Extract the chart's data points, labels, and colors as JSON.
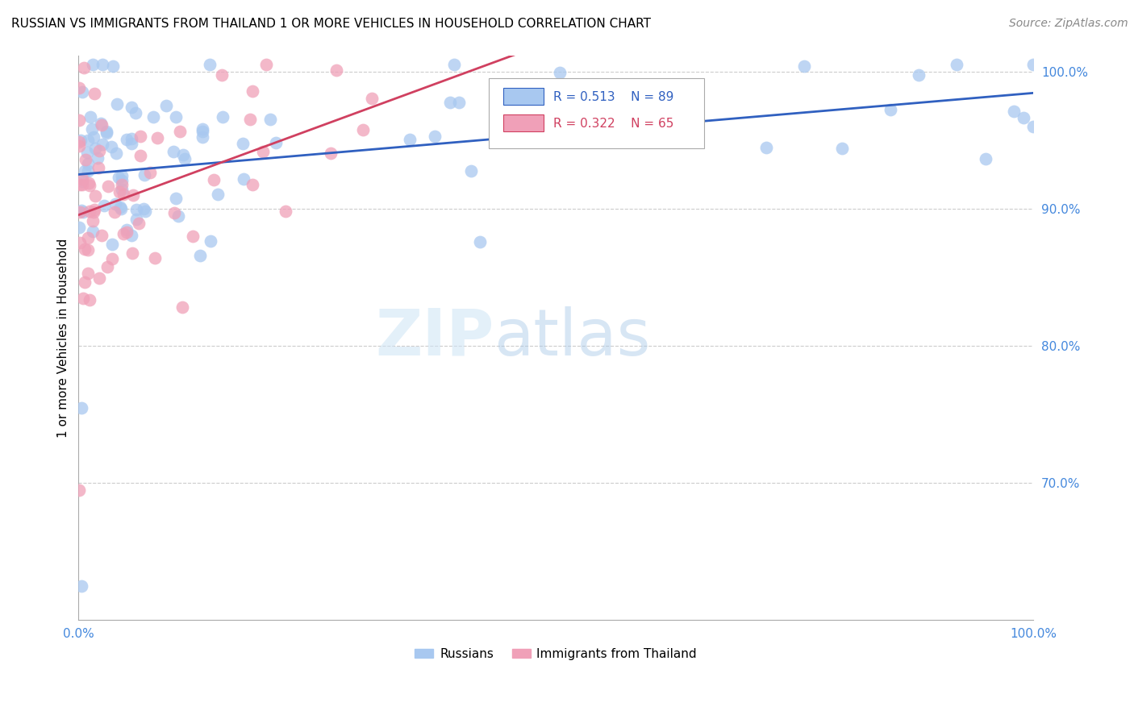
{
  "title": "RUSSIAN VS IMMIGRANTS FROM THAILAND 1 OR MORE VEHICLES IN HOUSEHOLD CORRELATION CHART",
  "source": "Source: ZipAtlas.com",
  "ylabel": "1 or more Vehicles in Household",
  "blue_R": 0.513,
  "blue_N": 89,
  "pink_R": 0.322,
  "pink_N": 65,
  "blue_color": "#a8c8f0",
  "pink_color": "#f0a0b8",
  "blue_line_color": "#3060c0",
  "pink_line_color": "#d04060",
  "legend_blue_label": "Russians",
  "legend_pink_label": "Immigrants from Thailand",
  "watermark_zip": "ZIP",
  "watermark_atlas": "atlas",
  "axis_color": "#4488dd",
  "ytick_vals": [
    0.7,
    0.8,
    0.9,
    1.0
  ],
  "ytick_labels": [
    "70.0%",
    "80.0%",
    "90.0%",
    "100.0%"
  ],
  "xtick_vals": [
    0.0,
    1.0
  ],
  "xtick_labels": [
    "0.0%",
    "100.0%"
  ],
  "xlim": [
    0.0,
    1.0
  ],
  "ylim": [
    0.6,
    1.012
  ]
}
